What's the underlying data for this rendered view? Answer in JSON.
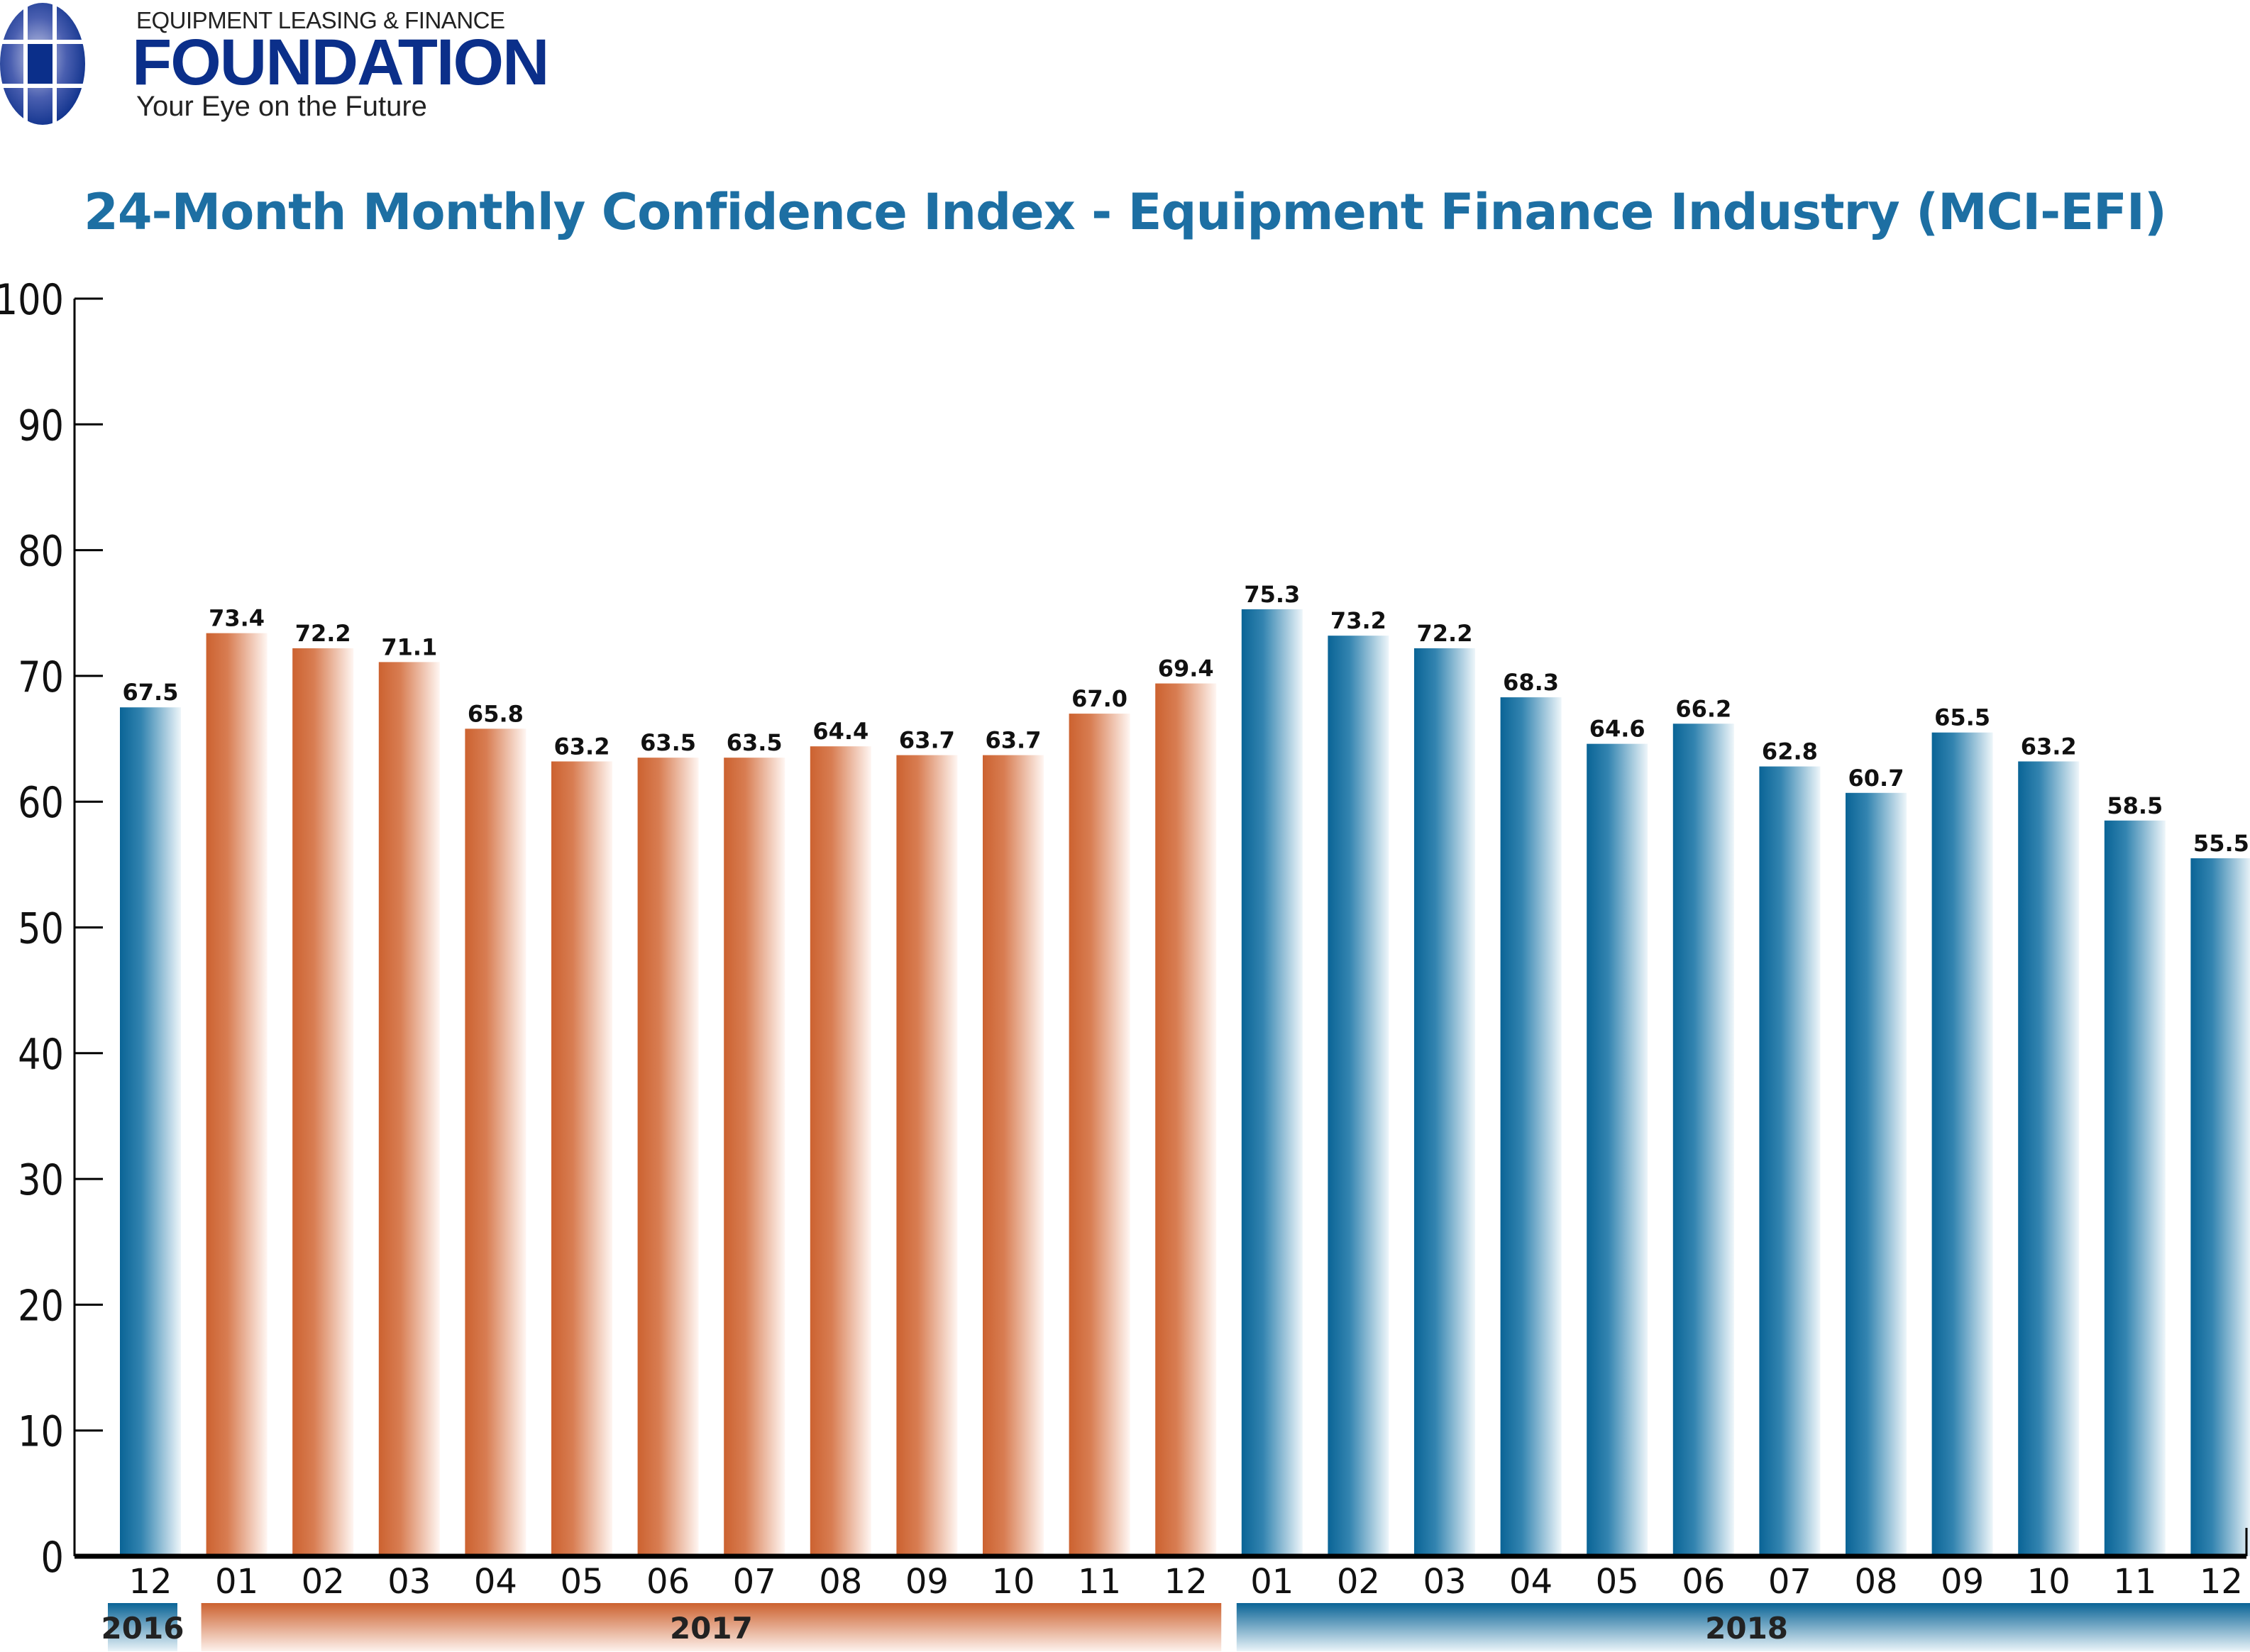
{
  "logo": {
    "top_text": "EQUIPMENT LEASING & FINANCE",
    "main_text": "FOUNDATION",
    "tagline": "Your Eye on the Future"
  },
  "chart_data": {
    "type": "bar",
    "title": "24-Month Monthly Confidence Index - Equipment Finance Industry (MCI-EFI)",
    "xlabel": "",
    "ylabel": "",
    "ylim": [
      0,
      100
    ],
    "yticks": [
      "0",
      "10",
      "20",
      "30",
      "40",
      "50",
      "60",
      "70",
      "80",
      "90",
      "100"
    ],
    "grid": false,
    "categories": [
      "12",
      "01",
      "02",
      "03",
      "04",
      "05",
      "06",
      "07",
      "08",
      "09",
      "10",
      "11",
      "12",
      "01",
      "02",
      "03",
      "04",
      "05",
      "06",
      "07",
      "08",
      "09",
      "10",
      "11",
      "12"
    ],
    "years": [
      "2016",
      "2017",
      "2017",
      "2017",
      "2017",
      "2017",
      "2017",
      "2017",
      "2017",
      "2017",
      "2017",
      "2017",
      "2017",
      "2018",
      "2018",
      "2018",
      "2018",
      "2018",
      "2018",
      "2018",
      "2018",
      "2018",
      "2018",
      "2018",
      "2018"
    ],
    "values": [
      67.5,
      73.4,
      72.2,
      71.1,
      65.8,
      63.2,
      63.5,
      63.5,
      64.4,
      63.7,
      63.7,
      67.0,
      69.4,
      75.3,
      73.2,
      72.2,
      68.3,
      64.6,
      66.2,
      62.8,
      60.7,
      65.5,
      63.2,
      58.5,
      55.5
    ],
    "labels": [
      "67.5",
      "73.4",
      "72.2",
      "71.1",
      "65.8",
      "63.2",
      "63.5",
      "63.5",
      "64.4",
      "63.7",
      "63.7",
      "67.0",
      "69.4",
      "75.3",
      "73.2",
      "72.2",
      "68.3",
      "64.6",
      "66.2",
      "62.8",
      "60.7",
      "65.5",
      "63.2",
      "58.5",
      "55.5"
    ],
    "year_groups": [
      {
        "label": "2016",
        "start": 0,
        "end": 0,
        "color": "#0f6b9c"
      },
      {
        "label": "2017",
        "start": 1,
        "end": 12,
        "color": "#d06a3a"
      },
      {
        "label": "2018",
        "start": 13,
        "end": 24,
        "color": "#0f6b9c"
      }
    ]
  }
}
